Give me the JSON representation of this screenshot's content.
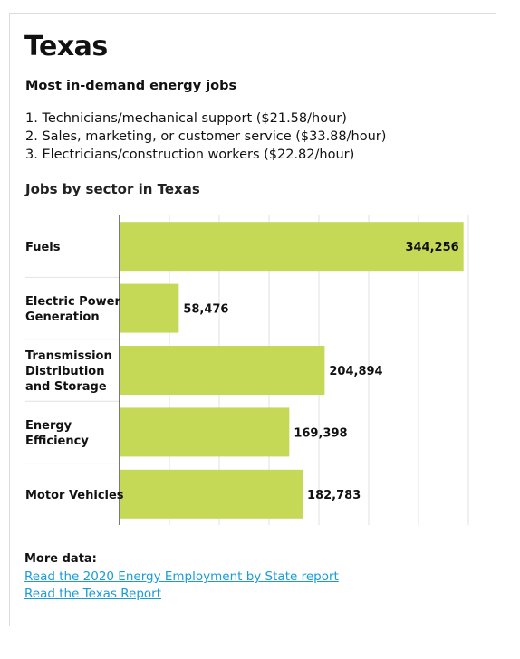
{
  "header": {
    "title": "Texas",
    "subtitle": "Most in-demand energy jobs"
  },
  "jobs_list": [
    "1. Technicians/mechanical support ($21.58/hour)",
    "2. Sales, marketing, or customer service ($33.88/hour)",
    "3. Electricians/construction workers ($22.82/hour)"
  ],
  "chart_heading": "Jobs by sector in Texas",
  "colors": {
    "bar": "#c5d956",
    "link": "#1a9bd7",
    "grid": "#e2e2e2",
    "axis": "#222222"
  },
  "chart_data": {
    "type": "bar",
    "orientation": "horizontal",
    "title": "Jobs by sector in Texas",
    "categories": [
      [
        "Fuels"
      ],
      [
        "Electric Power",
        "Generation"
      ],
      [
        "Transmission",
        "Distribution",
        "and Storage"
      ],
      [
        "Energy",
        "Efficiency"
      ],
      [
        "Motor Vehicles"
      ]
    ],
    "values": [
      344256,
      58476,
      204894,
      169398,
      182783
    ],
    "value_labels": [
      "344,256",
      "58,476",
      "204,894",
      "169,398",
      "182,783"
    ],
    "xlim": [
      0,
      350000
    ],
    "grid": true,
    "gridlines": [
      50000,
      100000,
      150000,
      200000,
      250000,
      300000,
      350000
    ]
  },
  "more_data": {
    "label": "More data:",
    "links": [
      "Read the 2020 Energy Employment by State report",
      "Read the Texas Report"
    ]
  }
}
